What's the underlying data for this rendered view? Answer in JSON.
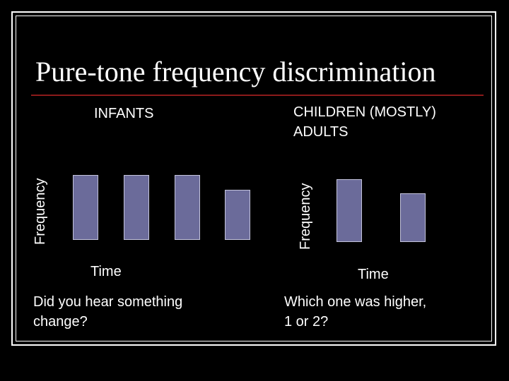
{
  "title": "Pure-tone frequency discrimination",
  "left": {
    "heading": "INFANTS",
    "y_label": "Frequency",
    "x_label": "Time",
    "question_line1": "Did you hear something",
    "question_line2": "change?",
    "bar_heights_relative": [
      1.0,
      1.0,
      1.0,
      0.77
    ]
  },
  "right": {
    "heading_line1": "CHILDREN (MOSTLY)",
    "heading_line2": "ADULTS",
    "y_label": "Frequency",
    "x_label": "Time",
    "question_line1": "Which one was higher,",
    "question_line2": "1 or 2?",
    "bar_heights_relative": [
      1.0,
      0.77
    ]
  },
  "colors": {
    "background": "#000000",
    "bar_fill": "#6b6b9a",
    "bar_border": "#c4c4dc",
    "title_rule": "#8b1a1a"
  }
}
